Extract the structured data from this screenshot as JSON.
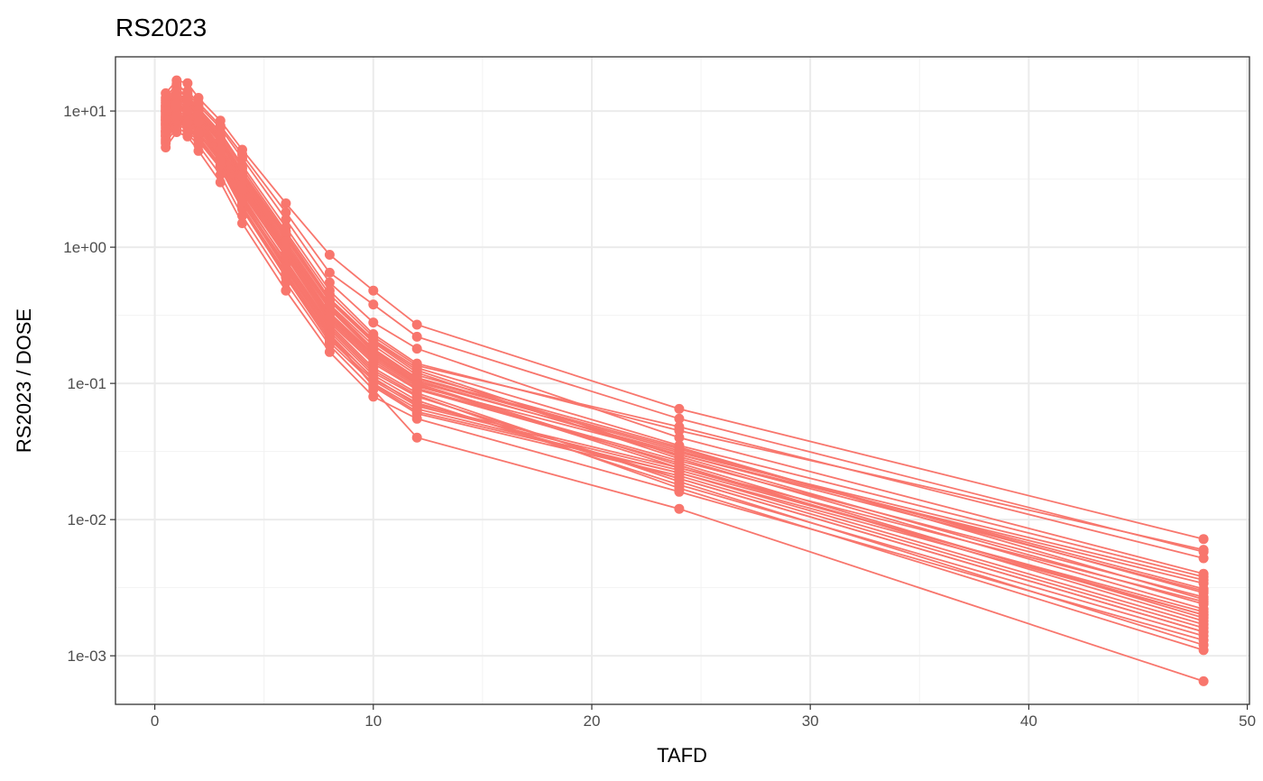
{
  "chart_data": {
    "type": "line",
    "title": "RS2023",
    "xlabel": "TAFD",
    "ylabel": "RS2023 / DOSE",
    "y_scale": "log10",
    "xlim": [
      -1.8,
      50.1
    ],
    "ylim": [
      0.00044,
      25
    ],
    "x_ticks": [
      0,
      10,
      20,
      30,
      40,
      50
    ],
    "x_tick_labels": [
      "0",
      "10",
      "20",
      "30",
      "40",
      "50"
    ],
    "y_ticks": [
      0.001,
      0.01,
      0.1,
      1,
      10
    ],
    "y_tick_labels": [
      "1e-03",
      "1e-02",
      "1e-01",
      "1e+00",
      "1e+01"
    ],
    "grid": true,
    "legend": "none",
    "series_color": "#F8766D",
    "x": [
      0.5,
      1,
      1.5,
      2,
      3,
      4,
      6,
      8,
      10,
      12,
      24,
      48
    ],
    "series": [
      {
        "values": [
          8.5,
          11.2,
          9.8,
          8.2,
          5.1,
          2.6,
          0.9,
          0.3,
          0.15,
          0.095,
          0.03,
          0.003
        ]
      },
      {
        "values": [
          12.5,
          15.8,
          13.5,
          11.0,
          7.5,
          4.5,
          1.6,
          0.55,
          0.28,
          0.18,
          0.04,
          0.004
        ]
      },
      {
        "values": [
          6.0,
          8.2,
          7.1,
          6.0,
          3.8,
          1.9,
          0.6,
          0.2,
          0.1,
          0.065,
          0.022,
          0.002
        ]
      },
      {
        "values": [
          10.2,
          13.0,
          11.8,
          9.5,
          6.2,
          3.4,
          1.15,
          0.4,
          0.2,
          0.12,
          0.028,
          0.0022
        ]
      },
      {
        "values": [
          7.1,
          9.5,
          8.6,
          7.3,
          4.6,
          2.2,
          0.75,
          0.25,
          0.12,
          0.08,
          0.02,
          0.0015
        ]
      },
      {
        "values": [
          13.5,
          16.8,
          16.0,
          12.5,
          8.5,
          5.2,
          2.1,
          0.88,
          0.48,
          0.27,
          0.065,
          0.0072
        ]
      },
      {
        "values": [
          5.4,
          7.0,
          6.5,
          5.1,
          3.0,
          1.5,
          0.48,
          0.17,
          0.08,
          0.055,
          0.016,
          0.0013
        ]
      },
      {
        "values": [
          9.2,
          12.0,
          10.5,
          8.8,
          5.5,
          3.0,
          1.0,
          0.35,
          0.17,
          0.105,
          0.03,
          0.0034
        ]
      },
      {
        "values": [
          11.5,
          14.5,
          13.0,
          10.5,
          7.0,
          4.0,
          1.4,
          0.48,
          0.23,
          0.14,
          0.045,
          0.006
        ]
      },
      {
        "values": [
          6.5,
          8.8,
          7.8,
          6.5,
          4.0,
          2.0,
          0.65,
          0.22,
          0.11,
          0.07,
          0.024,
          0.0025
        ]
      },
      {
        "values": [
          8.0,
          10.8,
          9.2,
          7.8,
          4.8,
          2.5,
          0.85,
          0.28,
          0.14,
          0.09,
          0.026,
          0.0019
        ]
      },
      {
        "values": [
          10.8,
          13.5,
          12.2,
          10.0,
          6.5,
          3.6,
          1.25,
          0.42,
          0.21,
          0.13,
          0.035,
          0.0038
        ]
      },
      {
        "values": [
          7.5,
          9.8,
          8.8,
          7.5,
          4.4,
          2.3,
          0.8,
          0.27,
          0.13,
          0.085,
          0.019,
          0.0012
        ]
      },
      {
        "values": [
          9.8,
          12.5,
          11.2,
          9.2,
          6.0,
          3.2,
          1.05,
          0.37,
          0.18,
          0.11,
          0.033,
          0.0029
        ]
      },
      {
        "values": [
          6.8,
          9.0,
          8.0,
          6.8,
          4.2,
          2.1,
          0.7,
          0.23,
          0.095,
          0.06,
          0.021,
          0.0016
        ]
      },
      {
        "values": [
          8.8,
          11.5,
          10.2,
          8.5,
          5.3,
          2.8,
          0.95,
          0.32,
          0.16,
          0.1,
          0.025,
          0.0018
        ]
      },
      {
        "values": [
          5.8,
          7.6,
          6.8,
          5.6,
          3.4,
          1.7,
          0.55,
          0.19,
          0.09,
          0.04,
          0.012,
          0.00065
        ]
      },
      {
        "values": [
          12.0,
          15.0,
          14.0,
          11.5,
          7.8,
          4.8,
          1.8,
          0.65,
          0.38,
          0.22,
          0.055,
          0.0058
        ]
      },
      {
        "values": [
          7.8,
          10.2,
          9.0,
          7.6,
          4.6,
          2.4,
          0.78,
          0.26,
          0.125,
          0.082,
          0.017,
          0.0011
        ]
      },
      {
        "values": [
          9.5,
          12.2,
          11.0,
          9.0,
          5.8,
          3.1,
          1.02,
          0.36,
          0.175,
          0.108,
          0.032,
          0.0031
        ]
      },
      {
        "values": [
          6.2,
          8.4,
          7.4,
          6.2,
          3.9,
          1.95,
          0.62,
          0.21,
          0.105,
          0.068,
          0.023,
          0.0021
        ]
      },
      {
        "values": [
          10.5,
          13.2,
          12.0,
          9.8,
          6.4,
          3.5,
          1.2,
          0.41,
          0.205,
          0.125,
          0.029,
          0.0024
        ]
      },
      {
        "values": [
          8.2,
          11.0,
          9.5,
          8.0,
          5.0,
          2.6,
          0.88,
          0.29,
          0.145,
          0.092,
          0.027,
          0.0027
        ]
      },
      {
        "values": [
          11.0,
          14.0,
          12.8,
          10.2,
          6.8,
          3.8,
          1.3,
          0.45,
          0.22,
          0.135,
          0.048,
          0.0052
        ]
      },
      {
        "values": [
          7.2,
          9.4,
          8.4,
          7.0,
          4.4,
          2.25,
          0.72,
          0.24,
          0.115,
          0.075,
          0.018,
          0.0014
        ]
      },
      {
        "values": [
          9.0,
          11.8,
          10.6,
          8.6,
          5.4,
          2.9,
          0.98,
          0.33,
          0.165,
          0.102,
          0.031,
          0.0036
        ]
      },
      {
        "values": [
          6.6,
          8.6,
          7.6,
          6.4,
          4.0,
          2.0,
          0.64,
          0.22,
          0.098,
          0.062,
          0.022,
          0.0017
        ]
      },
      {
        "values": [
          10.0,
          12.8,
          11.5,
          9.4,
          6.1,
          3.3,
          1.1,
          0.38,
          0.19,
          0.115,
          0.034,
          0.0026
        ]
      },
      {
        "values": [
          8.6,
          11.3,
          10.0,
          8.3,
          5.2,
          2.7,
          0.92,
          0.31,
          0.155,
          0.098,
          0.024,
          0.002
        ]
      },
      {
        "values": [
          7.0,
          9.2,
          8.2,
          6.9,
          4.3,
          2.15,
          0.68,
          0.23,
          0.108,
          0.072,
          0.02,
          0.0015
        ]
      }
    ]
  }
}
